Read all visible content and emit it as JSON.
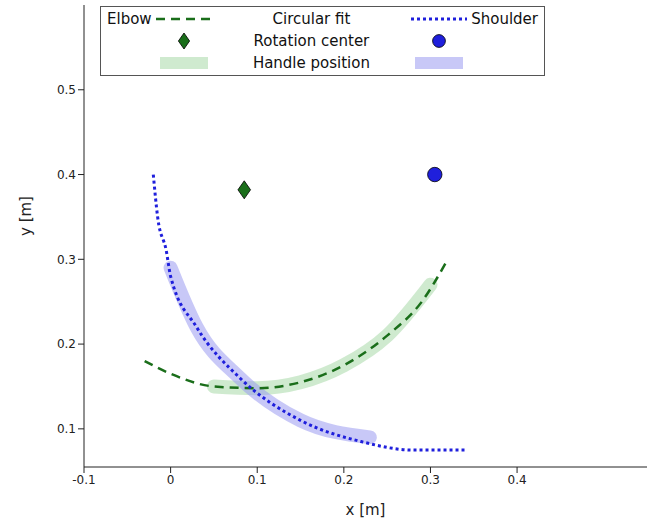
{
  "chart_data": {
    "type": "line",
    "xlabel": "x [m]",
    "ylabel": "y [m]",
    "xlim": [
      -0.1,
      0.55
    ],
    "ylim": [
      0.055,
      0.6
    ],
    "xticks": [
      -0.1,
      0,
      0.1,
      0.2,
      0.3,
      0.4
    ],
    "yticks": [
      0.1,
      0.2,
      0.3,
      0.4,
      0.5
    ],
    "grid": false,
    "legend": "top",
    "legend_columns": [
      "Elbow",
      "Shoulder"
    ],
    "legend_rows": [
      "Circular fit",
      "Rotation center",
      "Handle position"
    ],
    "series": [
      {
        "group": "Elbow",
        "role": "Circular fit",
        "type": "line",
        "line_style": "dashed",
        "color": "#1a6e1a",
        "x": [
          -0.03,
          0.0,
          0.05,
          0.1,
          0.15,
          0.2,
          0.25,
          0.29,
          0.32
        ],
        "y": [
          0.18,
          0.165,
          0.15,
          0.148,
          0.155,
          0.175,
          0.21,
          0.25,
          0.3
        ]
      },
      {
        "group": "Shoulder",
        "role": "Circular fit",
        "type": "line",
        "line_style": "dotted",
        "color": "#1f1fdc",
        "x": [
          -0.02,
          -0.015,
          -0.005,
          0.0,
          0.03,
          0.08,
          0.15,
          0.22,
          0.28,
          0.34
        ],
        "y": [
          0.4,
          0.35,
          0.31,
          0.28,
          0.22,
          0.16,
          0.11,
          0.085,
          0.075,
          0.075
        ]
      },
      {
        "group": "Elbow",
        "role": "Rotation center",
        "type": "scatter",
        "marker": "diamond",
        "color": "#1a6e1a",
        "x": [
          0.085
        ],
        "y": [
          0.382
        ]
      },
      {
        "group": "Shoulder",
        "role": "Rotation center",
        "type": "scatter",
        "marker": "circle",
        "color": "#1f1fdc",
        "x": [
          0.305
        ],
        "y": [
          0.4
        ]
      },
      {
        "group": "Elbow",
        "role": "Handle position",
        "type": "band",
        "color": "#a8d8a8",
        "x": [
          0.05,
          0.1,
          0.15,
          0.2,
          0.25,
          0.3
        ],
        "y": [
          0.15,
          0.148,
          0.155,
          0.175,
          0.21,
          0.27
        ]
      },
      {
        "group": "Shoulder",
        "role": "Handle position",
        "type": "band",
        "color": "#9a9af0",
        "x": [
          0.0,
          0.03,
          0.08,
          0.15,
          0.23
        ],
        "y": [
          0.29,
          0.22,
          0.16,
          0.11,
          0.09
        ]
      }
    ]
  }
}
